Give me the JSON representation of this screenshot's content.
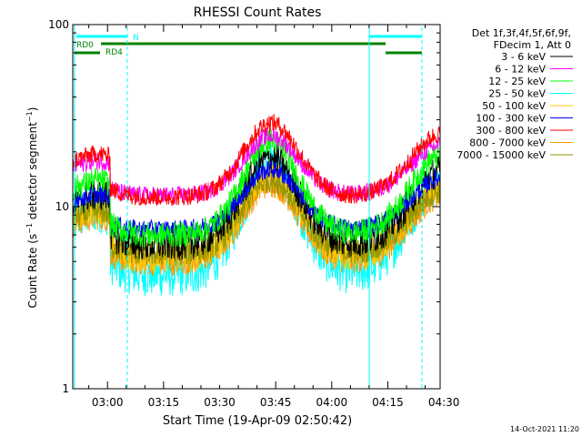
{
  "chart_data": {
    "type": "line",
    "title": "RHESSI Count Rates",
    "xlabel": "Start Time (19-Apr-09 02:50:42)",
    "ylabel": "Count Rate (s⁻¹ detector segment⁻¹)",
    "ylabel_main": "Count Rate (s",
    "ylabel_sup1": "−1",
    "ylabel_mid": " detector segment",
    "ylabel_sup2": "−1",
    "ylabel_end": ")",
    "xrange_minutes": [
      0,
      98.3
    ],
    "xrange_note_hidden": "",
    "yscale": "log",
    "ylim": [
      1,
      100
    ],
    "yticks": [
      {
        "value": 1,
        "label": "1"
      },
      {
        "value": 10,
        "label": "10"
      },
      {
        "value": 100,
        "label": "100"
      }
    ],
    "xticks": [
      {
        "label": "03:00",
        "min": 9.3
      },
      {
        "label": "03:15",
        "min": 24.3
      },
      {
        "label": "03:30",
        "min": 39.3
      },
      {
        "label": "03:45",
        "min": 54.3
      },
      {
        "label": "04:00",
        "min": 69.3
      },
      {
        "label": "04:15",
        "min": 84.3
      },
      {
        "label": "04:30",
        "min": 99.3
      }
    ],
    "legend_header_1": "Det 1f,3f,4f,5f,6f,9f,",
    "legend_header_2": "FDecim 1, Att 0",
    "legend_placement": "right",
    "series": [
      {
        "name": "3 - 6 keV",
        "color": "#000000",
        "base": 6.2,
        "peak": 18.5,
        "rise_start": 3,
        "noise": 0.09
      },
      {
        "name": "6 - 12 keV",
        "color": "#ff00ff",
        "base": 11.5,
        "peak": 24.5,
        "rise_start": 3,
        "noise": 0.05
      },
      {
        "name": "12 - 25 keV",
        "color": "#00ff00",
        "base": 7.0,
        "peak": 23.0,
        "rise_start": 3,
        "noise": 0.07
      },
      {
        "name": "25 - 50 keV",
        "color": "#00ffff",
        "base": 4.2,
        "peak": 17.0,
        "rise_start": 3,
        "noise": 0.12
      },
      {
        "name": "50 - 100 keV",
        "color": "#ffc800",
        "base": 5.2,
        "peak": 15.0,
        "rise_start": 3,
        "noise": 0.08
      },
      {
        "name": "100 - 300 keV",
        "color": "#0000ff",
        "base": 7.5,
        "peak": 16.0,
        "rise_start": 3,
        "noise": 0.05
      },
      {
        "name": "300 - 800 keV",
        "color": "#ff0000",
        "base": 11.3,
        "peak": 29.0,
        "rise_start": 3,
        "noise": 0.05
      },
      {
        "name": "800 - 7000 keV",
        "color": "#ff9600",
        "base": 5.0,
        "peak": 13.5,
        "rise_start": 3,
        "noise": 0.08
      },
      {
        "name": "7000 - 15000 keV",
        "color": "#969600",
        "base": 5.5,
        "peak": 14.0,
        "rise_start": 3,
        "noise": 0.07
      }
    ],
    "flags": {
      "n_label": "N",
      "rd0_label": "RD0",
      "rd4_label": "RD4"
    },
    "footer_date": "14-Oct-2021 11:20"
  }
}
